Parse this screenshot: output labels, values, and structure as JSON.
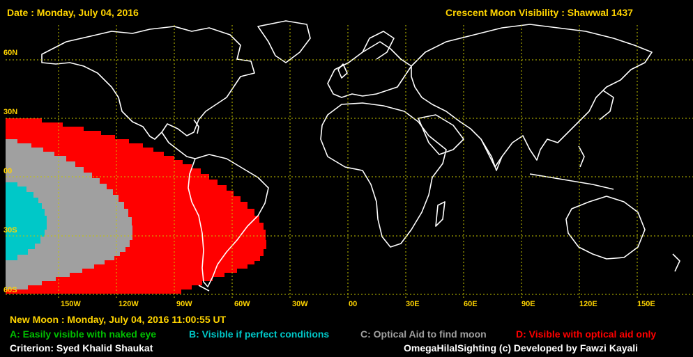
{
  "header": {
    "date_line": "Date : Monday, July 04, 2016",
    "title_line": "Crescent Moon Visibility : Shawwal  1437"
  },
  "map": {
    "lat_labels": [
      "60N",
      "30N",
      "00",
      "30S",
      "60S"
    ],
    "lon_labels": [
      "150W",
      "120W",
      "90W",
      "60W",
      "30W",
      "00",
      "30E",
      "60E",
      "90E",
      "120E",
      "150E"
    ],
    "colors": {
      "zone_a": "#00c000",
      "zone_b": "#00c8c8",
      "zone_c": "#a0a0a0",
      "zone_d": "#ff0000",
      "grid": "#c8c800",
      "land": "#ffffff"
    }
  },
  "footer": {
    "new_moon": "New Moon : Monday, July 04, 2016  11:00:55  UT",
    "legend": {
      "a": "A: Easily visible with naked eye",
      "b": "B: Visible if perfect conditions",
      "c": "C: Optical Aid to find moon",
      "d": "D: Visible with optical aid only"
    },
    "criterion": "Criterion: Syed Khalid Shaukat",
    "credit": "OmegaHilalSighting  (c)  Developed by Fawzi Kayali"
  }
}
